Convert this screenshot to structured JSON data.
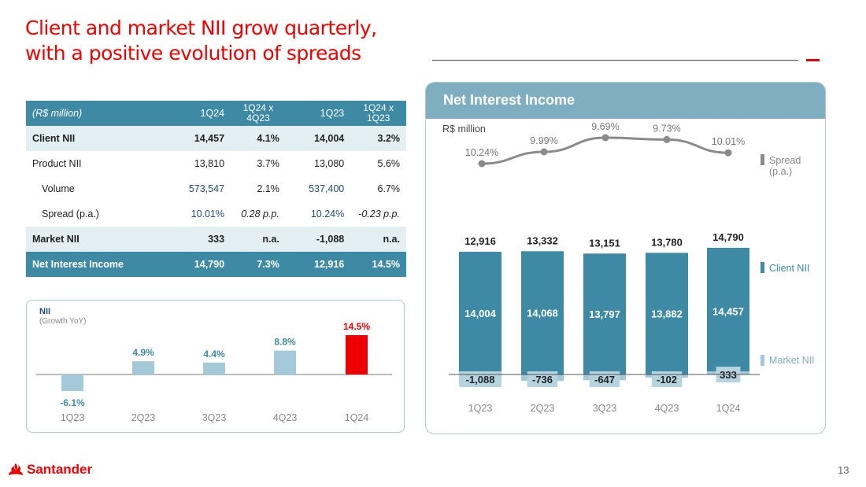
{
  "title": {
    "line1": "Client and market NII grow quarterly,",
    "line2": "with a positive evolution of spreads"
  },
  "table": {
    "header": [
      "(R$ million)",
      "1Q24",
      "1Q24 x 4Q23",
      "1Q23",
      "1Q24 x 1Q23"
    ],
    "rows": [
      [
        "Client NII",
        "14,457",
        "4.1%",
        "14,004",
        "3.2%"
      ],
      [
        "Product NII",
        "13,810",
        "3.7%",
        "13,080",
        "5.6%"
      ],
      [
        "Volume",
        "573,547",
        "2.1%",
        "537,400",
        "6.7%"
      ],
      [
        "Spread (p.a.)",
        "10.01%",
        "0.28 p.p.",
        "10.24%",
        "-0.23 p.p."
      ],
      [
        "Market NII",
        "333",
        "n.a.",
        "-1,088",
        "n.a."
      ],
      [
        "Net Interest Income",
        "14,790",
        "7.3%",
        "12,916",
        "14.5%"
      ]
    ]
  },
  "yoy": {
    "label": "NII",
    "sublabel": "(Growth YoY)"
  },
  "nii_panel": {
    "title": "Net Interest Income",
    "unit": "R$ million",
    "legend_spread": [
      "Spread",
      "(p.a.)"
    ],
    "legend_client": "Client NII",
    "legend_market": "Market NII"
  },
  "footer": {
    "logo": "Santander",
    "page": "13"
  },
  "colors": {
    "red": "#ec0000",
    "teal": "#3e8aa5",
    "light_blue": "#a4c9d8",
    "gray_line": "#8a8a8a"
  },
  "chart_data": [
    {
      "type": "bar",
      "title": "NII (Growth YoY)",
      "categories": [
        "1Q23",
        "2Q23",
        "3Q23",
        "4Q23",
        "1Q24"
      ],
      "values": [
        -6.1,
        4.9,
        4.4,
        8.8,
        14.5
      ],
      "labels": [
        "-6.1%",
        "4.9%",
        "4.4%",
        "8.8%",
        "14.5%"
      ],
      "highlight": "1Q24",
      "ylabel": "%"
    },
    {
      "type": "bar",
      "title": "Net Interest Income",
      "ylabel": "R$ million",
      "categories": [
        "1Q23",
        "2Q23",
        "3Q23",
        "4Q23",
        "1Q24"
      ],
      "series": [
        {
          "name": "Client NII",
          "values": [
            14004,
            14068,
            13797,
            13882,
            14457
          ],
          "labels": [
            "14,004",
            "14,068",
            "13,797",
            "13,882",
            "14,457"
          ]
        },
        {
          "name": "Market NII",
          "values": [
            -1088,
            -736,
            -647,
            -102,
            333
          ],
          "labels": [
            "-1,088",
            "-736",
            "-647",
            "-102",
            "333"
          ]
        }
      ],
      "totals": [
        12916,
        13332,
        13151,
        13780,
        14790
      ],
      "total_labels": [
        "12,916",
        "13,332",
        "13,151",
        "13,780",
        "14,790"
      ]
    },
    {
      "type": "line",
      "title": "Spread (p.a.)",
      "categories": [
        "1Q23",
        "2Q23",
        "3Q23",
        "4Q23",
        "1Q24"
      ],
      "values": [
        10.24,
        9.99,
        9.69,
        9.73,
        10.01
      ],
      "labels": [
        "10.24%",
        "9.99%",
        "9.69%",
        "9.73%",
        "10.01%"
      ]
    }
  ]
}
